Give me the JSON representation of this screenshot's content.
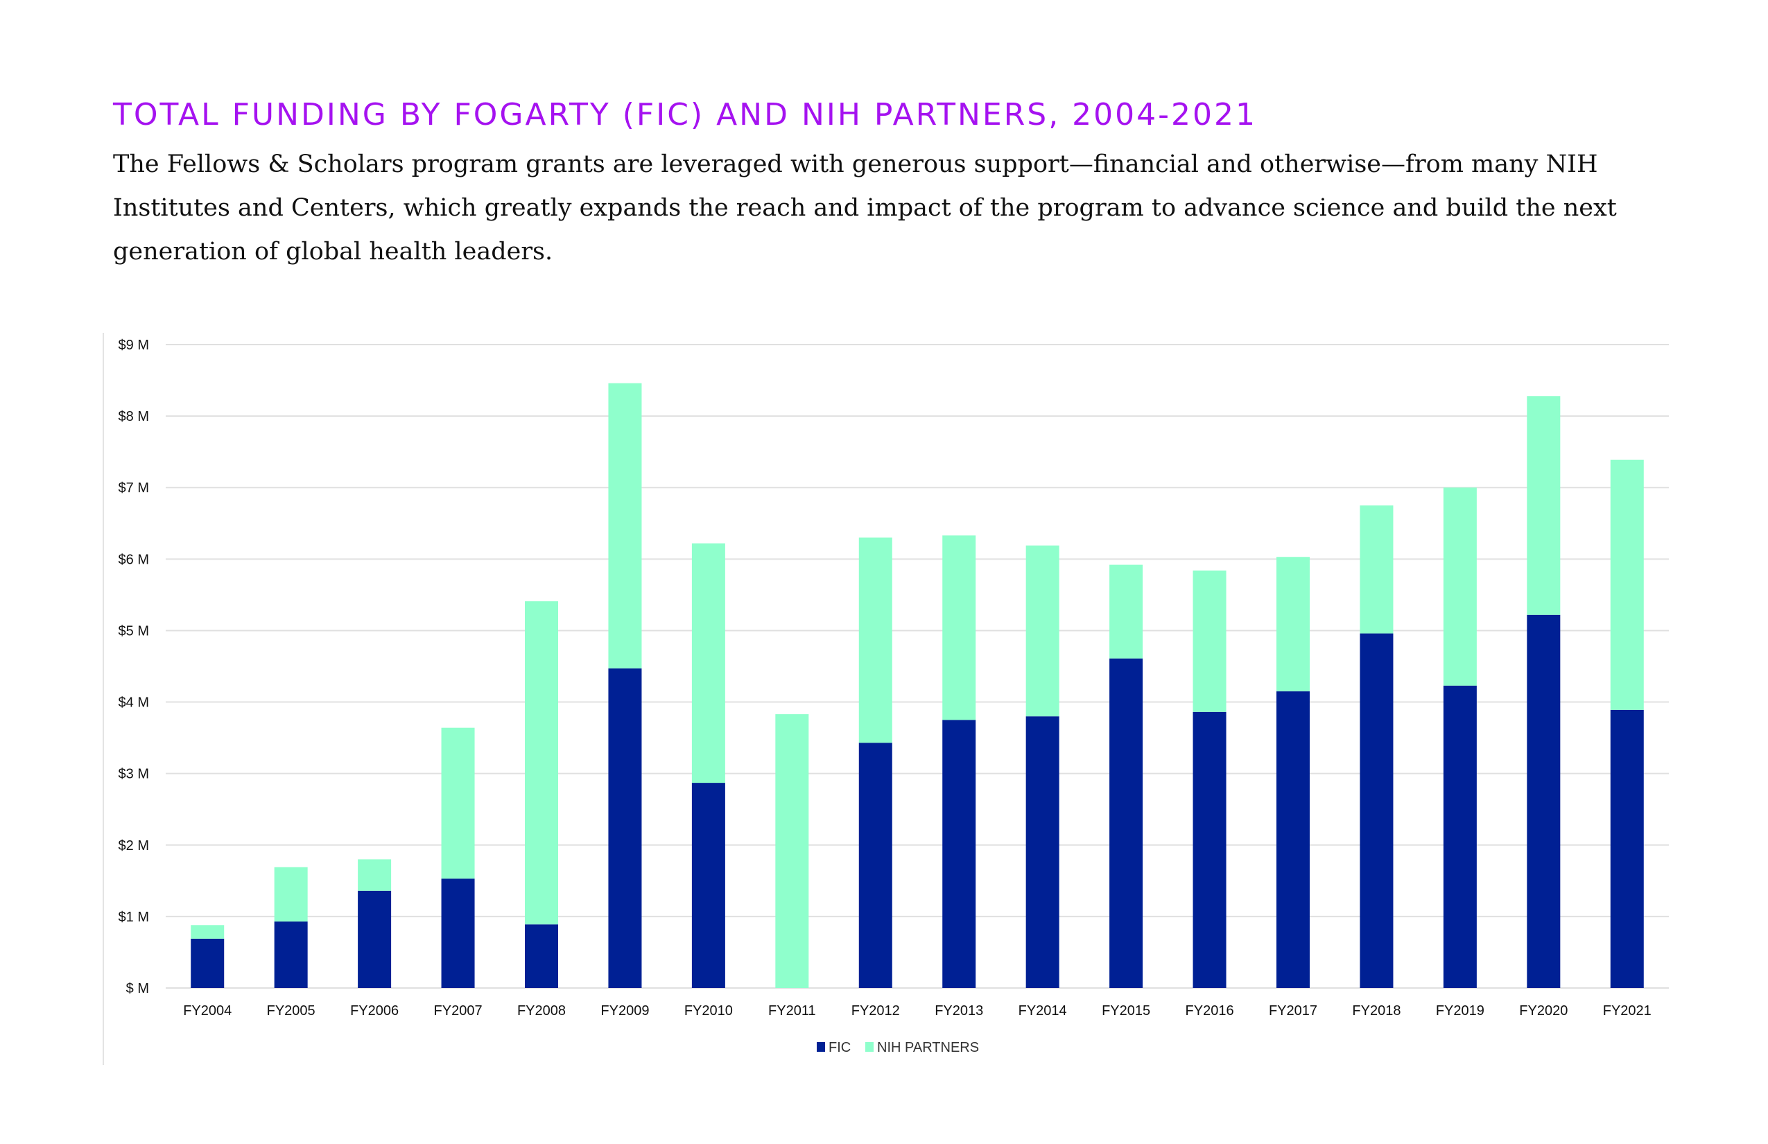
{
  "header": {
    "title": "TOTAL FUNDING BY FOGARTY (FIC) AND NIH PARTNERS, 2004-2021",
    "description": "The Fellows & Scholars program grants are leveraged with generous support—financial and otherwise—from many NIH Institutes and Centers, which greatly expands the reach and impact of the program to advance science and build the next generation of global health leaders."
  },
  "chart_data": {
    "type": "bar",
    "stacked": true,
    "title": "TOTAL FUNDING BY FOGARTY (FIC) AND NIH PARTNERS, 2004-2021",
    "xlabel": "",
    "ylabel": "",
    "ylim": [
      0,
      9
    ],
    "yticks": [
      0,
      1,
      2,
      3,
      4,
      5,
      6,
      7,
      8,
      9
    ],
    "ytick_labels": [
      "$ M",
      "$1 M",
      "$2 M",
      "$3 M",
      "$4 M",
      "$5 M",
      "$6 M",
      "$7 M",
      "$8 M",
      "$9 M"
    ],
    "grid": true,
    "legend_position": "bottom",
    "categories": [
      "FY2004",
      "FY2005",
      "FY2006",
      "FY2007",
      "FY2008",
      "FY2009",
      "FY2010",
      "FY2011",
      "FY2012",
      "FY2013",
      "FY2014",
      "FY2015",
      "FY2016",
      "FY2017",
      "FY2018",
      "FY2019",
      "FY2020",
      "FY2021"
    ],
    "series": [
      {
        "name": "FIC",
        "color": "#002094",
        "values": [
          0.69,
          0.93,
          1.36,
          1.53,
          0.89,
          4.47,
          2.87,
          0.0,
          3.43,
          3.75,
          3.8,
          4.61,
          3.86,
          4.15,
          4.96,
          4.23,
          5.22,
          3.89
        ]
      },
      {
        "name": "NIH PARTNERS",
        "color": "#8fffcc",
        "values": [
          0.19,
          0.76,
          0.44,
          2.11,
          4.52,
          3.99,
          3.35,
          3.83,
          2.87,
          2.58,
          2.39,
          1.31,
          1.98,
          1.88,
          1.79,
          2.77,
          3.06,
          3.5
        ]
      }
    ]
  }
}
